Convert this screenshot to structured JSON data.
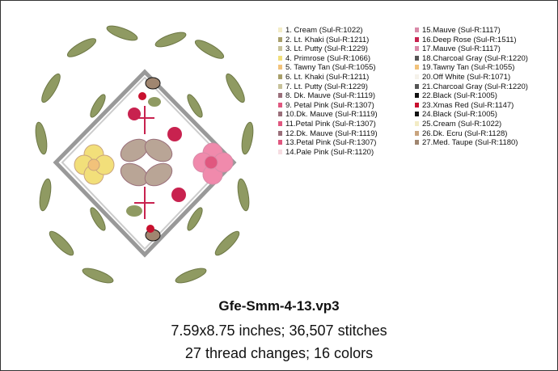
{
  "design": {
    "threads": [
      {
        "label": "1.  Cream (Sul-R:1022)",
        "color": "#f3ecc6"
      },
      {
        "label": "2.  Lt. Khaki (Sul-R:1211)",
        "color": "#a89f6a"
      },
      {
        "label": "3.  Lt. Putty (Sul-R:1229)",
        "color": "#c7c29a"
      },
      {
        "label": "4.  Primrose (Sul-R:1066)",
        "color": "#f2df7a"
      },
      {
        "label": "5.  Tawny Tan (Sul-R:1055)",
        "color": "#f2c27a"
      },
      {
        "label": "6.  Lt. Khaki (Sul-R:1211)",
        "color": "#a89f6a"
      },
      {
        "label": "7.  Lt. Putty (Sul-R:1229)",
        "color": "#c7c29a"
      },
      {
        "label": "8.  Dk. Mauve (Sul-R:1119)",
        "color": "#9a6f7a"
      },
      {
        "label": "9.  Petal Pink (Sul-R:1307)",
        "color": "#e0577f"
      },
      {
        "label": "10.Dk. Mauve (Sul-R:1119)",
        "color": "#9a6f7a"
      },
      {
        "label": "11.Petal Pink (Sul-R:1307)",
        "color": "#e0577f"
      },
      {
        "label": "12.Dk. Mauve (Sul-R:1119)",
        "color": "#9a6f7a"
      },
      {
        "label": "13.Petal Pink (Sul-R:1307)",
        "color": "#e0577f"
      },
      {
        "label": "14.Pale Pink (Sul-R:1120)",
        "color": "#f6dde2"
      },
      {
        "label": "15.Mauve (Sul-R:1117)",
        "color": "#d98aa8"
      },
      {
        "label": "16.Deep Rose (Sul-R:1511)",
        "color": "#c8224f"
      },
      {
        "label": "17.Mauve (Sul-R:1117)",
        "color": "#d98aa8"
      },
      {
        "label": "18.Charcoal Gray (Sul-R:1220)",
        "color": "#555555"
      },
      {
        "label": "19.Tawny Tan (Sul-R:1055)",
        "color": "#f2c27a"
      },
      {
        "label": "20.Off White (Sul-R:1071)",
        "color": "#f5f2ea"
      },
      {
        "label": "21.Charcoal Gray (Sul-R:1220)",
        "color": "#555555"
      },
      {
        "label": "22.Black (Sul-R:1005)",
        "color": "#111111"
      },
      {
        "label": "23.Xmas Red (Sul-R:1147)",
        "color": "#c8102e"
      },
      {
        "label": "24.Black (Sul-R:1005)",
        "color": "#111111"
      },
      {
        "label": "25.Cream (Sul-R:1022)",
        "color": "#f3ecc6"
      },
      {
        "label": "26.Dk. Ecru (Sul-R:1128)",
        "color": "#c9a47e"
      },
      {
        "label": "27.Med. Taupe (Sul-R:1180)",
        "color": "#a08670"
      }
    ],
    "file_name": "Gfe-Smm-4-13.vp3",
    "size_line": "7.59x8.75 inches; 36,507 stitches",
    "changes_line": "27 thread changes; 16 colors"
  }
}
